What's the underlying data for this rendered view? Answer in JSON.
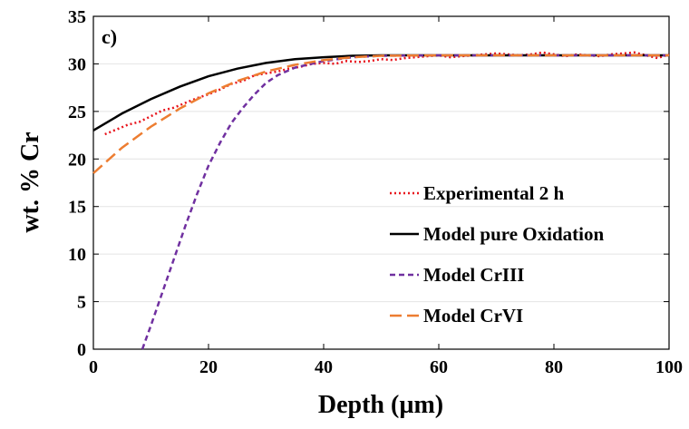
{
  "chart_data": {
    "type": "line",
    "annotation": "c)",
    "x_label": "Depth (µm)",
    "y_label": "wt. % Cr",
    "xlim": [
      0,
      100
    ],
    "xticks": [
      0,
      20,
      40,
      60,
      80,
      100
    ],
    "ylim": [
      0,
      35
    ],
    "yticks": [
      0,
      5,
      10,
      15,
      20,
      25,
      30,
      35
    ],
    "grid": true,
    "legend": "right",
    "series": [
      {
        "name": "Experimental 2 h",
        "color": "#e8141c",
        "style": "dotted",
        "x": [
          2,
          4,
          6,
          8,
          10,
          12,
          14,
          16,
          18,
          20,
          22,
          24,
          26,
          28,
          30,
          32,
          34,
          36,
          38,
          40,
          42,
          44,
          46,
          48,
          50,
          52,
          54,
          56,
          58,
          60,
          62,
          64,
          66,
          68,
          70,
          72,
          74,
          76,
          78,
          80,
          82,
          84,
          86,
          88,
          90,
          92,
          94,
          96,
          98,
          100
        ],
        "values": [
          22.6,
          23.1,
          23.6,
          23.9,
          24.5,
          25.1,
          25.4,
          25.9,
          26.4,
          26.8,
          27.3,
          27.9,
          28.2,
          28.8,
          29.0,
          29.2,
          29.5,
          29.7,
          30.0,
          30.1,
          30.0,
          30.3,
          30.2,
          30.3,
          30.5,
          30.4,
          30.6,
          30.7,
          30.8,
          30.9,
          30.7,
          30.8,
          30.9,
          31.0,
          31.1,
          31.0,
          30.9,
          31.0,
          31.2,
          31.0,
          30.8,
          31.0,
          30.9,
          30.8,
          31.0,
          31.1,
          31.2,
          30.9,
          30.6,
          31.0
        ]
      },
      {
        "name": "Model pure Oxidation",
        "color": "#000000",
        "style": "solid",
        "x": [
          0,
          5,
          10,
          15,
          20,
          25,
          30,
          35,
          40,
          45,
          50,
          60,
          70,
          80,
          90,
          100
        ],
        "values": [
          23,
          24.8,
          26.3,
          27.6,
          28.7,
          29.5,
          30.1,
          30.5,
          30.7,
          30.85,
          30.9,
          30.9,
          30.9,
          30.9,
          30.9,
          30.9
        ]
      },
      {
        "name": "Model CrIII",
        "color": "#7030a0",
        "style": "dashed",
        "x": [
          8.5,
          10,
          12,
          14,
          16,
          18,
          20,
          22,
          24,
          26,
          28,
          30,
          32,
          35,
          40,
          45,
          50,
          60,
          70,
          80,
          90,
          100
        ],
        "values": [
          0,
          2.5,
          6,
          9.5,
          13,
          16.3,
          19.3,
          21.7,
          23.8,
          25.4,
          26.8,
          28.0,
          28.8,
          29.6,
          30.3,
          30.7,
          30.85,
          30.9,
          30.9,
          30.9,
          30.9,
          30.9
        ]
      },
      {
        "name": "Model CrVI",
        "color": "#ed7d31",
        "style": "longdash",
        "x": [
          0,
          5,
          10,
          15,
          20,
          25,
          30,
          35,
          40,
          45,
          50,
          60,
          70,
          80,
          90,
          100
        ],
        "values": [
          18.5,
          21.2,
          23.4,
          25.3,
          26.9,
          28.2,
          29.2,
          29.9,
          30.4,
          30.7,
          30.85,
          30.9,
          30.9,
          30.9,
          30.9,
          30.9
        ]
      }
    ]
  }
}
